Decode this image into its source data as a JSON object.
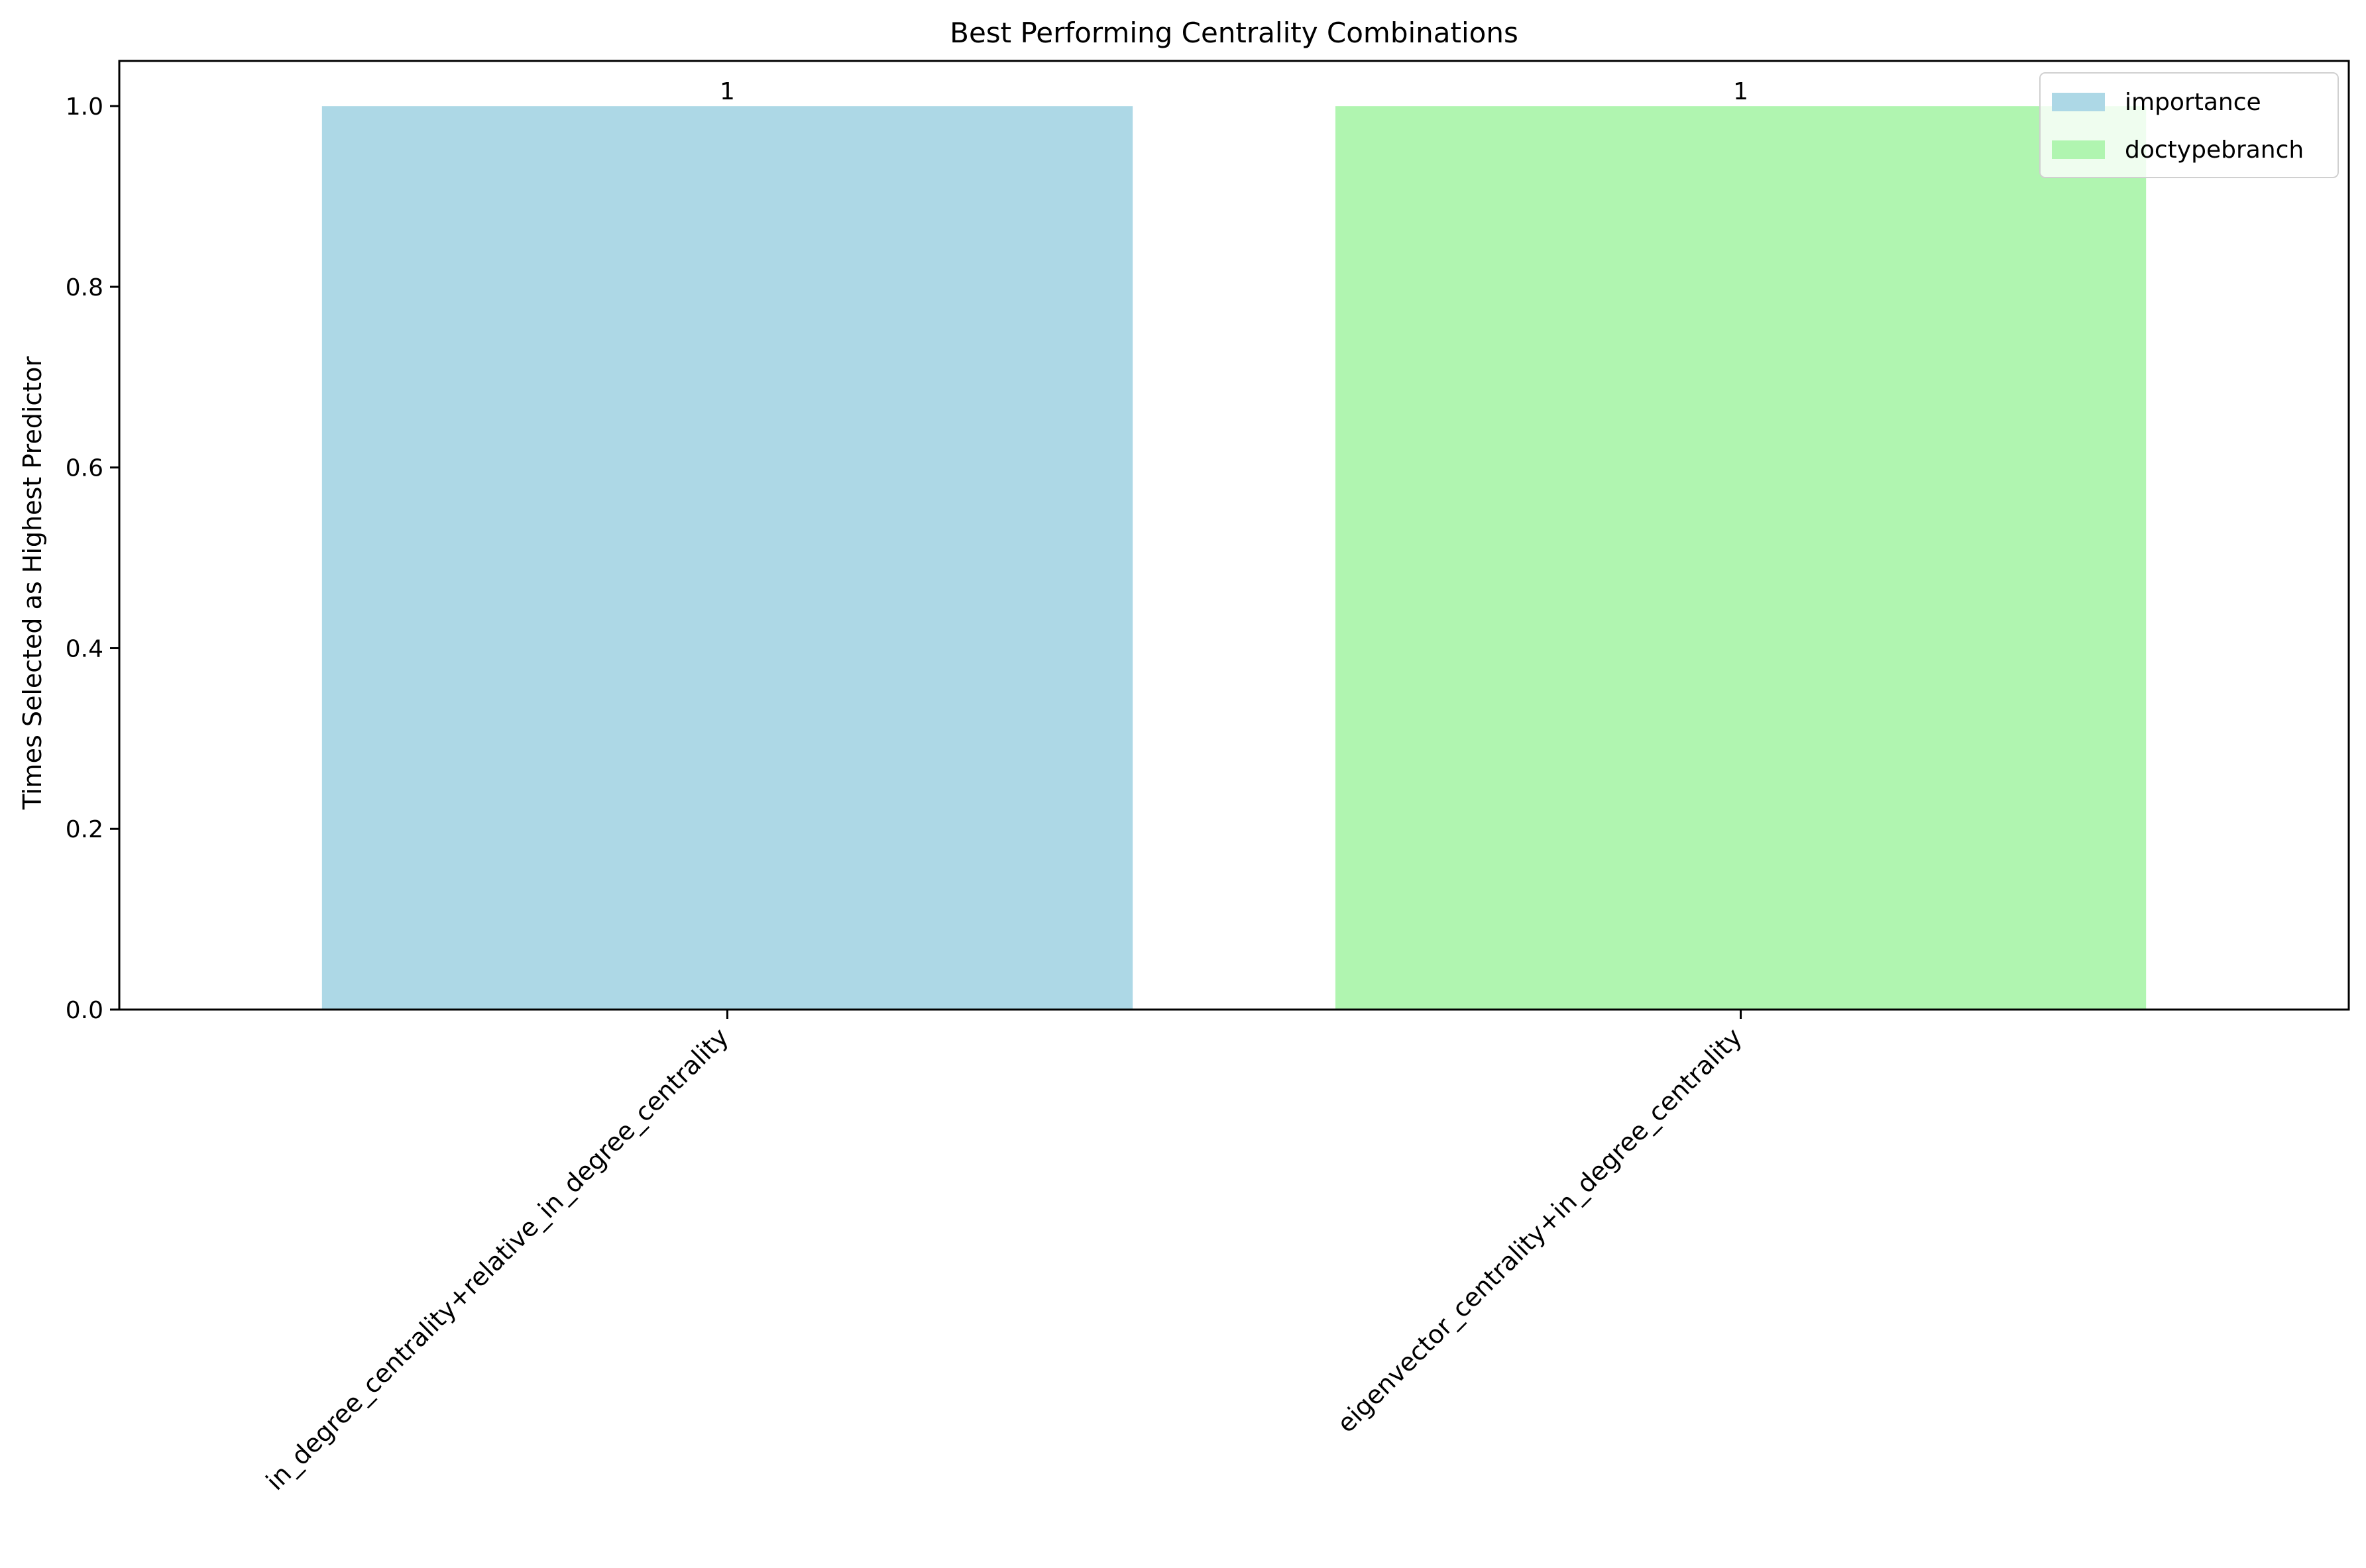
{
  "chart_data": {
    "type": "bar",
    "title": "Best Performing Centrality Combinations",
    "xlabel": "",
    "ylabel": "Times Selected as Highest Predictor",
    "categories": [
      "in_degree_centrality+relative_in_degree_centrality",
      "eigenvector_centrality+in_degree_centrality"
    ],
    "values": [
      1,
      1
    ],
    "data_labels": [
      "1",
      "1"
    ],
    "bar_colors": [
      "#add8e6",
      "#b0f5b0"
    ],
    "ylim": [
      0,
      1.05
    ],
    "yticks": [
      0.0,
      0.2,
      0.4,
      0.6,
      0.8,
      1.0
    ],
    "ytick_labels": [
      "0.0",
      "0.2",
      "0.4",
      "0.6",
      "0.8",
      "1.0"
    ],
    "grid": false,
    "legend": {
      "placement": "top-right",
      "entries": [
        {
          "label": "importance",
          "color": "#add8e6"
        },
        {
          "label": "doctypebranch",
          "color": "#b0f5b0"
        }
      ]
    }
  }
}
